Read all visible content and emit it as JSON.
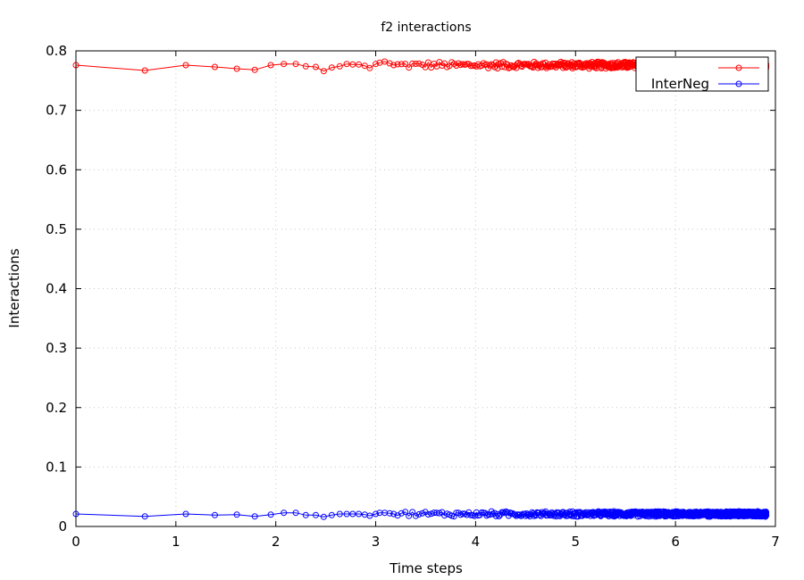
{
  "chart_data": {
    "type": "line",
    "title": "f2 interactions",
    "xlabel": "Time steps",
    "ylabel": "Interactions",
    "xlim": [
      0,
      7
    ],
    "ylim": [
      0,
      0.8
    ],
    "xticks": [
      "0",
      "1",
      "2",
      "3",
      "4",
      "5",
      "6",
      "7"
    ],
    "yticks": [
      "0",
      "0.1",
      "0.2",
      "0.3",
      "0.4",
      "0.5",
      "0.6",
      "0.7",
      "0.8"
    ],
    "grid": true,
    "legend_position": "top-right",
    "marker": "open-circle",
    "series": [
      {
        "name": "",
        "color": "#ff0000",
        "base": 0.776,
        "noise": 0.004,
        "x": [
          0,
          0.69,
          1.1,
          1.39,
          1.61,
          1.79,
          1.95,
          2.08,
          2.2,
          2.3,
          2.4,
          2.48,
          2.56,
          2.64,
          2.71,
          2.77,
          2.83,
          2.89,
          2.94,
          3.0,
          3.04,
          3.09,
          3.14,
          3.18
        ],
        "y": [
          0.776,
          0.767,
          0.776,
          0.773,
          0.77,
          0.768,
          0.776,
          0.778,
          0.778,
          0.774,
          0.773,
          0.766,
          0.772,
          0.774,
          0.778,
          0.777,
          0.777,
          0.775,
          0.771,
          0.778,
          0.78,
          0.782,
          0.779,
          0.776
        ]
      },
      {
        "name": "InterNeg",
        "color": "#0000ff",
        "base": 0.021,
        "noise": 0.003,
        "x": [
          0,
          0.69,
          1.1,
          1.39,
          1.61,
          1.79,
          1.95,
          2.08,
          2.2,
          2.3,
          2.4,
          2.48,
          2.56,
          2.64,
          2.71,
          2.77,
          2.83,
          2.89,
          2.94,
          3.0,
          3.04,
          3.09,
          3.14,
          3.18
        ],
        "y": [
          0.021,
          0.017,
          0.021,
          0.019,
          0.02,
          0.017,
          0.02,
          0.023,
          0.023,
          0.019,
          0.019,
          0.016,
          0.019,
          0.021,
          0.021,
          0.021,
          0.021,
          0.02,
          0.018,
          0.021,
          0.023,
          0.023,
          0.022,
          0.021
        ]
      }
    ]
  }
}
